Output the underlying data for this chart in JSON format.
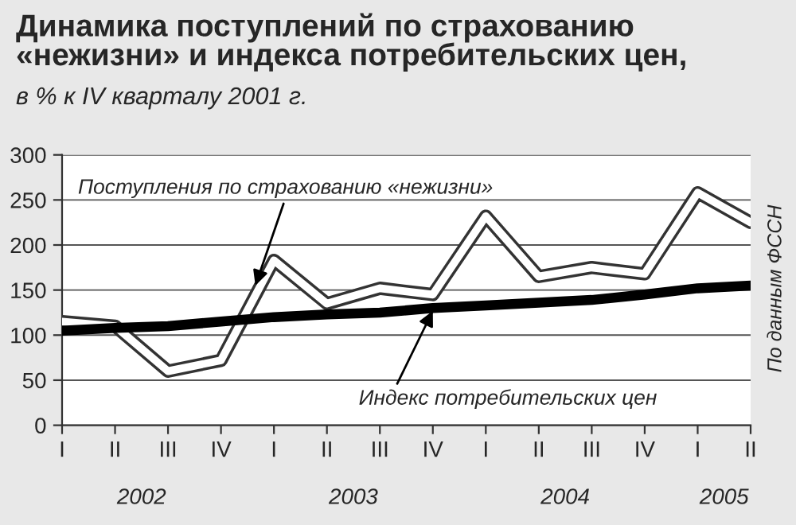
{
  "chart_data": {
    "type": "line",
    "title": "Динамика поступлений по страхованию\n«нежизни» и индекса потребительских цен,",
    "subtitle": "в % к IV кварталу 2001 г.",
    "categories": [
      "I",
      "II",
      "III",
      "IV",
      "I",
      "II",
      "III",
      "IV",
      "I",
      "II",
      "III",
      "IV",
      "I",
      "II"
    ],
    "series": [
      {
        "name": "Поступления по страхованию «нежизни»",
        "color": "#ffffff",
        "values": [
          115,
          110,
          60,
          72,
          183,
          135,
          152,
          145,
          232,
          165,
          175,
          168,
          258,
          225
        ]
      },
      {
        "name": "Индекс потребительских цен",
        "color": "#000000",
        "values": [
          105,
          108,
          110,
          115,
          120,
          123,
          125,
          130,
          133,
          136,
          139,
          145,
          152,
          155
        ]
      }
    ],
    "ylim": [
      0,
      300
    ],
    "yticks": [
      0,
      50,
      100,
      150,
      200,
      250,
      300
    ],
    "grid": "y",
    "legend": false,
    "annotations": [
      "2002",
      "2003",
      "2004",
      "2005",
      "По данным ФССН"
    ]
  }
}
